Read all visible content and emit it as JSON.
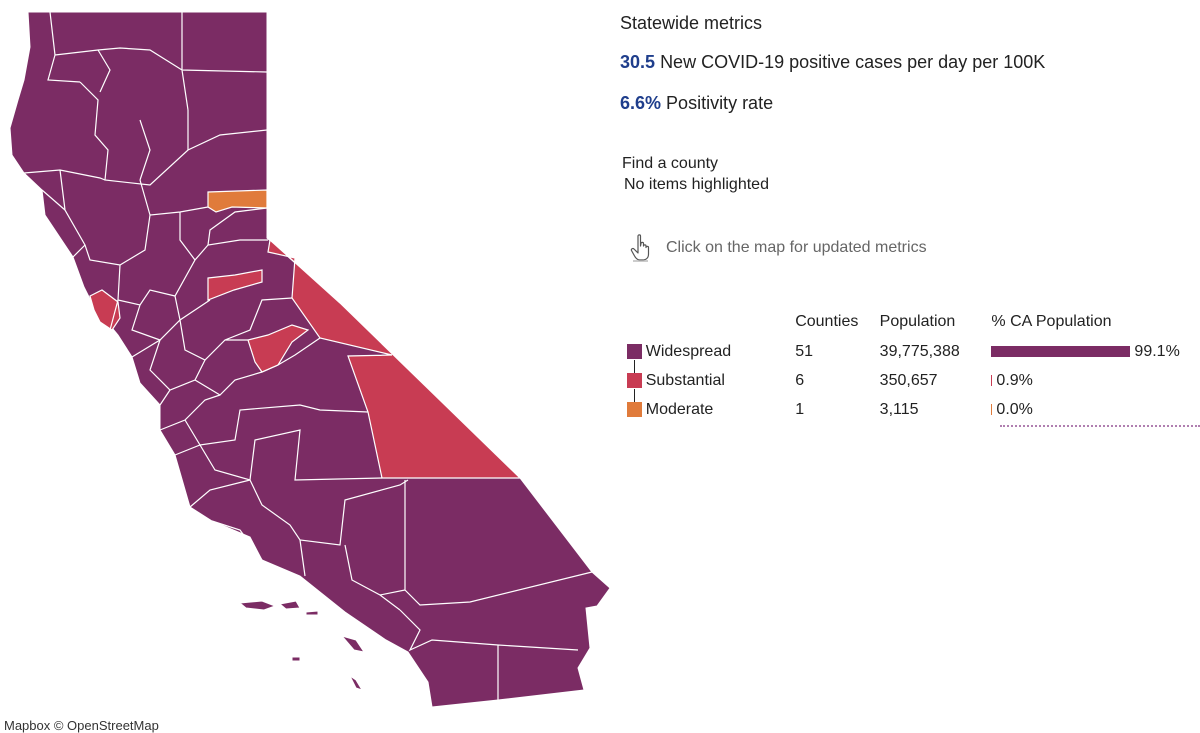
{
  "map": {
    "colors": {
      "widespread": "#7b2c64",
      "substantial": "#c83c53",
      "moderate": "#e07b3b",
      "border": "#ffffff"
    },
    "attribution": "Mapbox © OpenStreetMap"
  },
  "metrics": {
    "title": "Statewide metrics",
    "cases_value": "30.5",
    "cases_label": "New COVID-19 positive cases per day per 100K",
    "positivity_value": "6.6%",
    "positivity_label": "Positivity rate",
    "value_color": "#1f3e8c"
  },
  "county": {
    "find_label": "Find a county",
    "highlight_status": "No items highlighted"
  },
  "hint": {
    "icon": "hand-pointer-icon",
    "text": "Click on the map for updated metrics"
  },
  "legend": {
    "headers": {
      "counties": "Counties",
      "population": "Population",
      "pct": "% CA Population"
    },
    "rows": [
      {
        "tier": "Widespread",
        "color": "#7b2c64",
        "counties": "51",
        "population": "39,775,388",
        "pct_label": "99.1%",
        "pct": 99.1
      },
      {
        "tier": "Substantial",
        "color": "#c83c53",
        "counties": "6",
        "population": "350,657",
        "pct_label": "0.9%",
        "pct": 0.9
      },
      {
        "tier": "Moderate",
        "color": "#e07b3b",
        "counties": "1",
        "population": "3,115",
        "pct_label": "0.0%",
        "pct": 0.0
      }
    ]
  }
}
